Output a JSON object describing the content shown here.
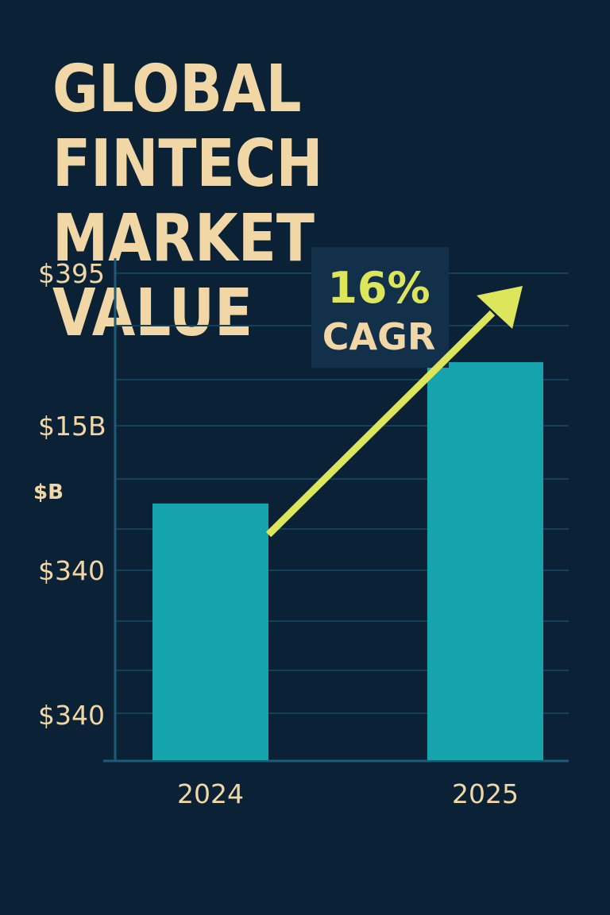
{
  "chart_data": {
    "type": "bar",
    "title_lines": [
      "GLOBAL FINTECH",
      "MARKET VALUE"
    ],
    "title": "GLOBAL FINTECH MARKET VALUE",
    "ylabel": "$B",
    "categories": [
      "2024",
      "2025"
    ],
    "values": [
      340,
      395
    ],
    "y_tick_labels": [
      "$395",
      "$15B",
      "$340",
      "$340"
    ],
    "annotation": {
      "value_text": "16%",
      "label_text": "CAGR"
    },
    "grid": true,
    "legend": "none"
  },
  "colors": {
    "background": "#0b2136",
    "bar": "#15a4ae",
    "arrow": "#dde55a",
    "text": "#f1d6a6",
    "gridline": "#16405a",
    "axis": "#1d5b76",
    "annotation_box": "#13304a"
  }
}
